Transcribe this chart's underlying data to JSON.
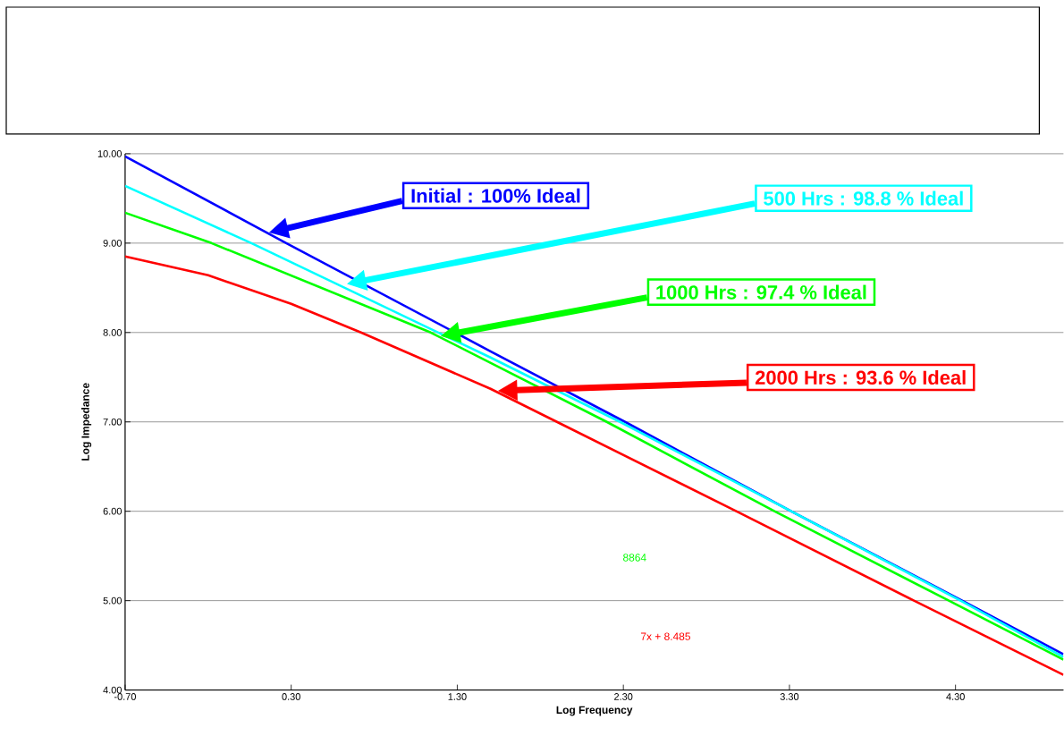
{
  "chart_data": {
    "type": "line",
    "xlabel": "Log Frequency",
    "ylabel": "Log Impedance",
    "xlim": [
      -0.7,
      4.95
    ],
    "ylim": [
      4,
      10
    ],
    "xticks": [
      {
        "value": -0.7,
        "label": "-0.70"
      },
      {
        "value": 0.3,
        "label": "0.30"
      },
      {
        "value": 1.3,
        "label": "1.30"
      },
      {
        "value": 2.3,
        "label": "2.30"
      },
      {
        "value": 3.3,
        "label": "3.30"
      },
      {
        "value": 4.3,
        "label": "4.30"
      }
    ],
    "yticks": [
      {
        "value": 4,
        "label": "4.00"
      },
      {
        "value": 5,
        "label": "5.00"
      },
      {
        "value": 6,
        "label": "6.00"
      },
      {
        "value": 7,
        "label": "7.00"
      },
      {
        "value": 8,
        "label": "8.00"
      },
      {
        "value": 9,
        "label": "9.00"
      },
      {
        "value": 10,
        "label": "10.00"
      }
    ],
    "grid": "y",
    "marker": "none",
    "line_style": "solid",
    "series": [
      {
        "name": "Initial : 100% Ideal",
        "color": "#0000ff",
        "x": [
          -0.7,
          0.27,
          1.5,
          2.31,
          3.31,
          4.34,
          4.95
        ],
        "values": [
          9.97,
          9.0,
          7.79,
          7.0,
          6.0,
          5.0,
          4.4
        ]
      },
      {
        "name": "500 Hrs : 98.8 % Ideal",
        "color": "#00ffff",
        "x": [
          -0.7,
          0.06,
          1.5,
          2.28,
          3.31,
          4.33,
          4.95
        ],
        "values": [
          9.64,
          9.0,
          7.72,
          7.0,
          6.0,
          5.0,
          4.37
        ]
      },
      {
        "name": "1000 Hrs : 97.4 % Ideal",
        "color": "#00ff00",
        "x": [
          -0.7,
          -0.18,
          1.14,
          2.2,
          3.21,
          4.26,
          4.95
        ],
        "values": [
          9.34,
          9.0,
          8.0,
          7.0,
          6.0,
          5.0,
          4.34
        ]
      },
      {
        "name": "2000 Hrs : 93.6 % Ideal",
        "color": "#ff0000",
        "x": [
          -0.7,
          -0.2,
          0.3,
          0.72,
          1.5,
          1.9,
          2.98,
          4.05,
          4.95
        ],
        "values": [
          8.85,
          8.64,
          8.32,
          8.0,
          7.37,
          7.0,
          6.0,
          5.0,
          4.17
        ]
      }
    ],
    "annotations": [
      "8864",
      "7x + 8.485"
    ]
  }
}
